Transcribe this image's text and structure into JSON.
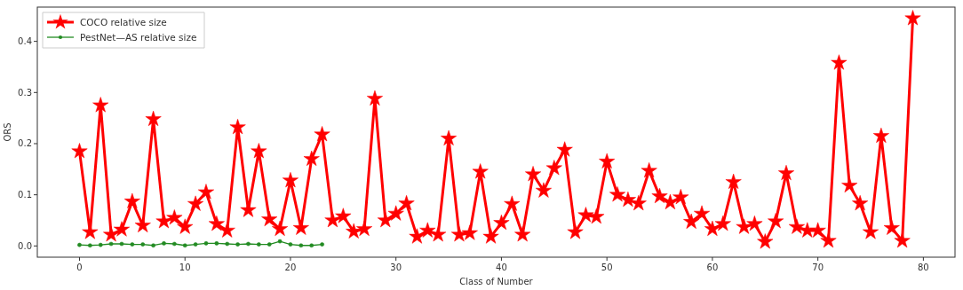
{
  "chart_data": {
    "type": "line",
    "xlabel": "Class of Number",
    "ylabel": "ORS",
    "xlim": [
      -4,
      83
    ],
    "ylim": [
      -0.022,
      0.467
    ],
    "xticks": [
      0,
      10,
      20,
      30,
      40,
      50,
      60,
      70,
      80
    ],
    "yticks": [
      {
        "value": 0,
        "label": "0.0"
      },
      0.1,
      0.2,
      0.3,
      0.4
    ],
    "grid": false,
    "legend": "top left",
    "line_style": "solid",
    "series": [
      {
        "name": "COCO relative size",
        "color": "#ff0000",
        "marker": "star",
        "x": [
          0,
          1,
          2,
          3,
          4,
          5,
          6,
          7,
          8,
          9,
          10,
          11,
          12,
          13,
          14,
          15,
          16,
          17,
          18,
          19,
          20,
          21,
          22,
          23,
          24,
          25,
          26,
          27,
          28,
          29,
          30,
          31,
          32,
          33,
          34,
          35,
          36,
          37,
          38,
          39,
          40,
          41,
          42,
          43,
          44,
          45,
          46,
          47,
          48,
          49,
          50,
          51,
          52,
          53,
          54,
          55,
          56,
          57,
          58,
          59,
          60,
          61,
          62,
          63,
          64,
          65,
          66,
          67,
          68,
          69,
          70,
          71,
          72,
          73,
          74,
          75,
          76,
          77,
          78,
          79
        ],
        "values": [
          0.185,
          0.027,
          0.275,
          0.022,
          0.032,
          0.087,
          0.04,
          0.248,
          0.048,
          0.055,
          0.037,
          0.082,
          0.105,
          0.043,
          0.03,
          0.232,
          0.07,
          0.185,
          0.052,
          0.033,
          0.128,
          0.035,
          0.17,
          0.218,
          0.05,
          0.058,
          0.028,
          0.033,
          0.288,
          0.05,
          0.063,
          0.083,
          0.018,
          0.03,
          0.022,
          0.21,
          0.022,
          0.025,
          0.145,
          0.018,
          0.045,
          0.082,
          0.022,
          0.14,
          0.108,
          0.152,
          0.188,
          0.027,
          0.06,
          0.057,
          0.165,
          0.1,
          0.09,
          0.083,
          0.147,
          0.097,
          0.085,
          0.095,
          0.047,
          0.063,
          0.033,
          0.043,
          0.125,
          0.037,
          0.043,
          0.008,
          0.048,
          0.142,
          0.037,
          0.03,
          0.03,
          0.01,
          0.358,
          0.118,
          0.083,
          0.027,
          0.215,
          0.035,
          0.01,
          0.445
        ]
      },
      {
        "name": "PestNet—AS relative size",
        "color": "#228b22",
        "marker": "circle",
        "x": [
          0,
          1,
          2,
          3,
          4,
          5,
          6,
          7,
          8,
          9,
          10,
          11,
          12,
          13,
          14,
          15,
          16,
          17,
          18,
          19,
          20,
          21,
          22,
          23
        ],
        "values": [
          0.002,
          0.001,
          0.002,
          0.004,
          0.004,
          0.003,
          0.003,
          0.001,
          0.005,
          0.004,
          0.001,
          0.003,
          0.005,
          0.005,
          0.004,
          0.003,
          0.004,
          0.003,
          0.003,
          0.009,
          0.003,
          0.001,
          0.001,
          0.003
        ]
      }
    ]
  }
}
